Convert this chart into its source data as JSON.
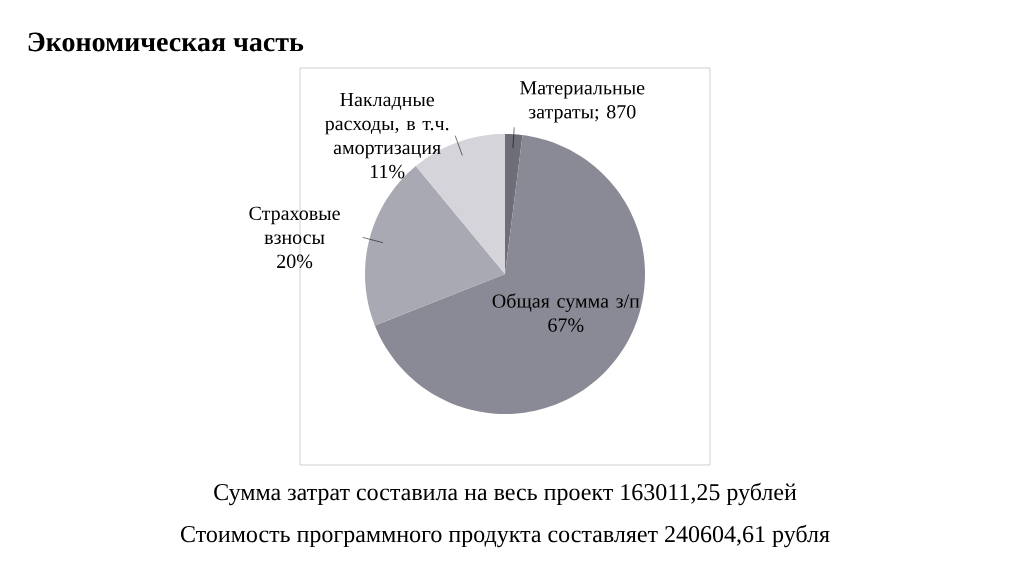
{
  "chart_data": {
    "type": "pie",
    "title": "Экономическая часть",
    "categories": [
      "Материальные затраты; 870",
      "Общая сумма з/п",
      "Страховые взносы",
      "Накладные расходы, в т.ч. амортизация"
    ],
    "values": [
      2,
      67,
      20,
      11
    ],
    "value_labels": [
      null,
      "67%",
      "20%",
      "11%"
    ],
    "colors": [
      "#6e6e78",
      "#8a8a96",
      "#a9a9b4",
      "#d4d4da"
    ],
    "annotations": [
      "Сумма затрат составила на весь проект 163011,25 рублей",
      "Стоимость программного продукта составляет 240604,61 рубля"
    ]
  }
}
